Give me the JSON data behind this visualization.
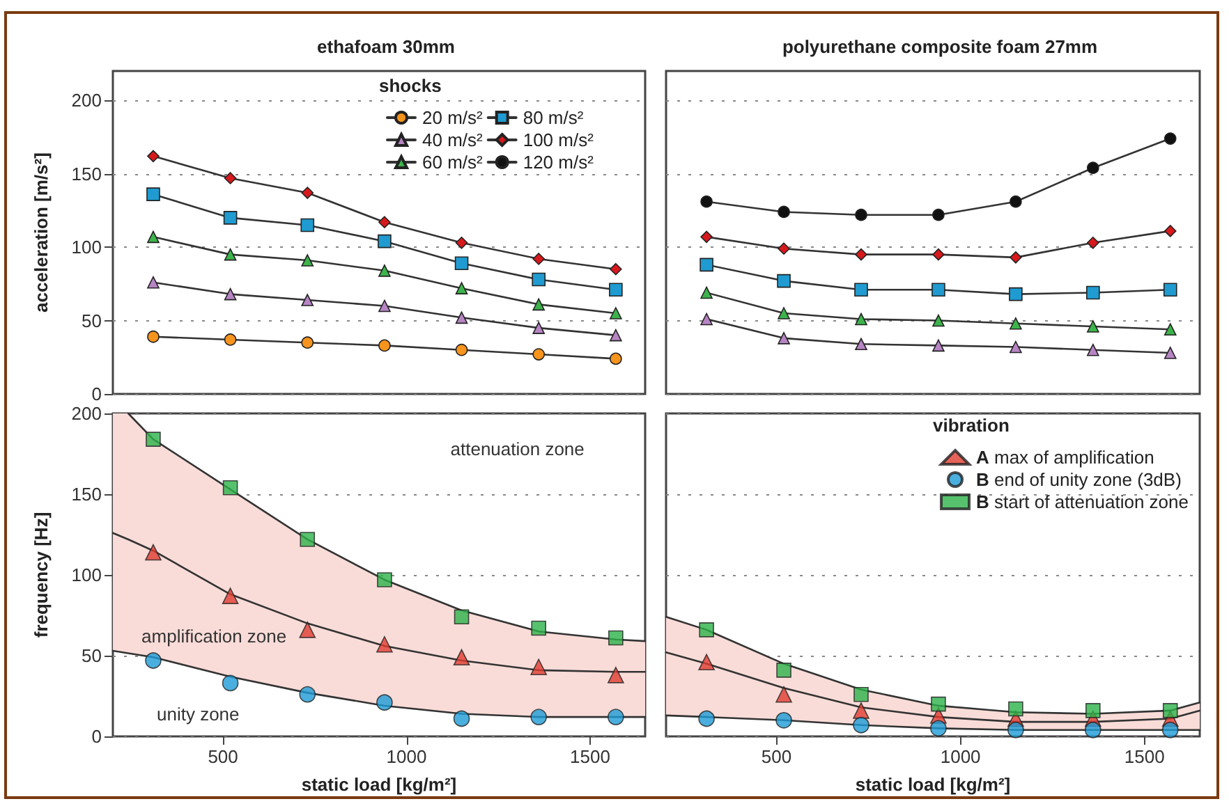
{
  "chart_data": [
    {
      "type": "line",
      "title": "ethafoam 30mm",
      "ylabel": "acceleration [m/s²]",
      "x": [
        310,
        520,
        730,
        940,
        1150,
        1360,
        1570
      ],
      "xlim": [
        200,
        1650
      ],
      "xticks": [
        500,
        1000,
        1500
      ],
      "ylim": [
        0,
        220
      ],
      "yticks": [
        0,
        50,
        100,
        150,
        200
      ],
      "grid": "y",
      "tick_labels": "y",
      "legend": "top right",
      "legend_title": "shocks",
      "series": [
        {
          "name": "20 m/s²",
          "color": "#f7941d",
          "marker": "circle",
          "values": [
            39,
            37,
            35,
            33,
            30,
            27,
            24
          ]
        },
        {
          "name": "40 m/s²",
          "color": "#b784c4",
          "marker": "triangle",
          "values": [
            76,
            68,
            64,
            60,
            52,
            45,
            40
          ]
        },
        {
          "name": "60 m/s²",
          "color": "#3cb44b",
          "marker": "triangle",
          "values": [
            107,
            95,
            91,
            84,
            72,
            61,
            55
          ]
        },
        {
          "name": "80 m/s²",
          "color": "#1f9bd1",
          "marker": "square",
          "values": [
            136,
            120,
            115,
            104,
            89,
            78,
            71
          ]
        },
        {
          "name": "100 m/s²",
          "color": "#d7191c",
          "marker": "diamond",
          "values": [
            162,
            147,
            137,
            117,
            103,
            92,
            85
          ]
        },
        {
          "name": "120 m/s²",
          "color": "#111111",
          "marker": "circle",
          "values": [
            null,
            null,
            null,
            null,
            null,
            null,
            null
          ]
        }
      ]
    },
    {
      "type": "line",
      "title": "polyurethane composite foam 27mm",
      "x": [
        310,
        520,
        730,
        940,
        1150,
        1360,
        1570
      ],
      "xlim": [
        200,
        1650
      ],
      "xticks": [
        500,
        1000,
        1500
      ],
      "ylim": [
        0,
        220
      ],
      "yticks": [
        0,
        50,
        100,
        150,
        200
      ],
      "grid": "y",
      "tick_labels": false,
      "series": [
        {
          "color": "#b784c4",
          "marker": "triangle",
          "values": [
            51,
            38,
            34,
            33,
            32,
            30,
            28
          ]
        },
        {
          "color": "#3cb44b",
          "marker": "triangle",
          "values": [
            69,
            55,
            51,
            50,
            48,
            46,
            44
          ]
        },
        {
          "color": "#1f9bd1",
          "marker": "square",
          "values": [
            88,
            77,
            71,
            71,
            68,
            69,
            71
          ]
        },
        {
          "color": "#d7191c",
          "marker": "diamond",
          "values": [
            107,
            99,
            95,
            95,
            93,
            103,
            111
          ]
        },
        {
          "color": "#111111",
          "marker": "circle",
          "values": [
            131,
            124,
            122,
            122,
            131,
            154,
            174
          ]
        }
      ]
    },
    {
      "type": "scatter",
      "xlabel": "static load [kg/m²]",
      "ylabel": "frequency [Hz]",
      "x": [
        310,
        520,
        730,
        940,
        1150,
        1360,
        1570
      ],
      "xlim": [
        200,
        1650
      ],
      "xticks": [
        500,
        1000,
        1500
      ],
      "ylim": [
        0,
        200
      ],
      "yticks": [
        0,
        50,
        100,
        150,
        200
      ],
      "grid": "y",
      "annotations": [
        "attenuation zone",
        "amplification zone",
        "unity zone"
      ],
      "series": [
        {
          "type": "line",
          "color": "#333333",
          "marker": "none",
          "x": [
            200,
            242,
            310,
            520,
            730,
            940,
            1150,
            1360,
            1570,
            1650
          ],
          "values": [
            126,
            122,
            115,
            88,
            70,
            56,
            47,
            41,
            40,
            40
          ],
          "lower": [
            53,
            51,
            49,
            37,
            27,
            19,
            14,
            12,
            12,
            12
          ],
          "upper": [
            200,
            200,
            184,
            153,
            122,
            97,
            78,
            65,
            60,
            59
          ]
        },
        {
          "type": "line",
          "color": "#333333",
          "marker": "none",
          "x": [
            242,
            310,
            520,
            730,
            940,
            1150,
            1360,
            1570,
            1650
          ],
          "values": [
            200,
            184,
            153,
            122,
            97,
            78,
            65,
            60,
            59
          ]
        },
        {
          "type": "line",
          "color": "#333333",
          "marker": "none",
          "x": [
            200,
            310,
            520,
            730,
            940,
            1150,
            1360,
            1570,
            1650
          ],
          "values": [
            53,
            49,
            37,
            27,
            19,
            14,
            12,
            12,
            12
          ]
        },
        {
          "color": "#e03c31",
          "marker": "triangle",
          "values": [
            114,
            87,
            66,
            57,
            49,
            43,
            38
          ]
        },
        {
          "color": "#1d9bd6",
          "marker": "circle",
          "values": [
            47,
            33,
            26,
            21,
            11,
            12,
            12
          ]
        },
        {
          "color": "#2db34a",
          "marker": "square",
          "values": [
            184,
            154,
            122,
            97,
            74,
            67,
            61
          ]
        }
      ]
    },
    {
      "type": "scatter",
      "xlabel": "static load [kg/m²]",
      "x": [
        310,
        520,
        730,
        940,
        1150,
        1360,
        1570
      ],
      "xlim": [
        200,
        1650
      ],
      "xticks": [
        500,
        1000,
        1500
      ],
      "ylim": [
        0,
        200
      ],
      "yticks": [
        0,
        50,
        100,
        150,
        200
      ],
      "grid": "y",
      "tick_labels": "x",
      "legend": "top right",
      "legend_title": "vibration",
      "series": [
        {
          "type": "line",
          "color": "#333333",
          "marker": "none",
          "x": [
            200,
            310,
            520,
            730,
            940,
            1150,
            1360,
            1570,
            1650
          ],
          "values": [
            52,
            45,
            30,
            18,
            12,
            9,
            9,
            11,
            16
          ],
          "lower": [
            13,
            12,
            10,
            7,
            5,
            4,
            4,
            4,
            4
          ],
          "upper": [
            74,
            66,
            45,
            29,
            19,
            15,
            14,
            16,
            21
          ]
        },
        {
          "type": "line",
          "color": "#333333",
          "marker": "none",
          "x": [
            200,
            310,
            520,
            730,
            940,
            1150,
            1360,
            1570,
            1650
          ],
          "values": [
            74,
            66,
            45,
            29,
            19,
            15,
            14,
            16,
            21
          ]
        },
        {
          "type": "line",
          "color": "#333333",
          "marker": "none",
          "x": [
            200,
            310,
            520,
            730,
            940,
            1150,
            1360,
            1570,
            1650
          ],
          "values": [
            13,
            12,
            10,
            7,
            5,
            4,
            4,
            4,
            4
          ]
        },
        {
          "name": "A max of amplification",
          "color": "#e03c31",
          "marker": "triangle",
          "values": [
            46,
            26,
            16,
            13,
            11,
            11,
            11
          ]
        },
        {
          "name": "B end of unity zone (3dB)",
          "color": "#1d9bd6",
          "marker": "circle",
          "values": [
            11,
            10,
            7,
            5,
            4,
            4,
            4
          ]
        },
        {
          "name": "B start of attenuation zone",
          "color": "#2db34a",
          "marker": "square",
          "values": [
            66,
            41,
            26,
            20,
            17,
            16,
            16
          ]
        }
      ]
    }
  ]
}
